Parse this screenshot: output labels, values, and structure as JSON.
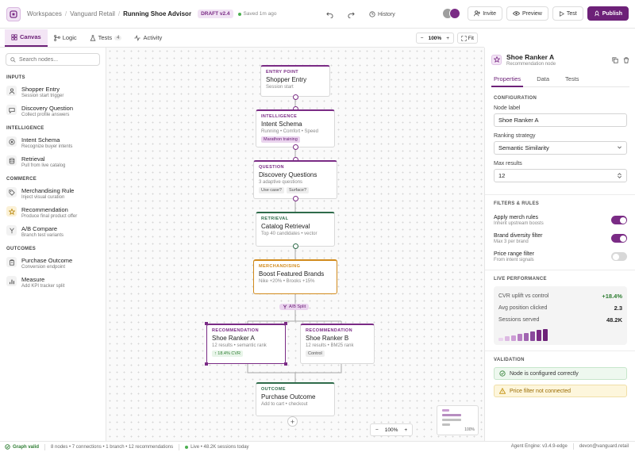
{
  "colors": {
    "accent": "#6d2178",
    "intelligence": "#7a2b85",
    "commerce": "#2e6b4a",
    "merch": "#d18a1c",
    "success": "#2e7d32"
  },
  "topbar": {
    "breadcrumb": [
      "Workspaces",
      "Vanguard Retail",
      "Running Shoe Advisor"
    ],
    "draft_badge": "DRAFT v2.4",
    "saved": "Saved 1m ago",
    "history": "History",
    "invite": "Invite",
    "preview": "Preview",
    "test": "Test",
    "publish": "Publish"
  },
  "tabs": [
    {
      "label": "Canvas",
      "icon": "grid-icon",
      "active": true
    },
    {
      "label": "Logic",
      "icon": "branch-icon"
    },
    {
      "label": "Tests",
      "icon": "flask-icon",
      "count": "4"
    },
    {
      "label": "Activity",
      "icon": "activity-icon"
    }
  ],
  "zoom_top": "100%",
  "fit": "Fit",
  "palette": {
    "search_placeholder": "Search nodes...",
    "sections": [
      {
        "title": "INPUTS",
        "items": [
          {
            "name": "Shopper Entry",
            "sub": "Session start trigger",
            "icon": "user-icon"
          },
          {
            "name": "Discovery Question",
            "sub": "Collect profile answers",
            "icon": "chat-icon"
          }
        ]
      },
      {
        "title": "INTELLIGENCE",
        "items": [
          {
            "name": "Intent Schema",
            "sub": "Recognize buyer intents",
            "icon": "target-icon"
          },
          {
            "name": "Retrieval",
            "sub": "Pull from live catalog",
            "icon": "database-icon"
          }
        ]
      },
      {
        "title": "COMMERCE",
        "items": [
          {
            "name": "Merchandising Rule",
            "sub": "Inject visual curation",
            "icon": "tag-icon"
          },
          {
            "name": "Recommendation",
            "sub": "Produce final product offer",
            "icon": "star-icon"
          },
          {
            "name": "A/B Compare",
            "sub": "Branch test variants",
            "icon": "split-icon"
          }
        ]
      },
      {
        "title": "OUTCOMES",
        "items": [
          {
            "name": "Purchase Outcome",
            "sub": "Conversion endpoint",
            "icon": "cart-icon"
          },
          {
            "name": "Measure",
            "sub": "Add KPI tracker split",
            "icon": "chart-icon"
          }
        ]
      }
    ]
  },
  "nodes": {
    "entry": {
      "type": "ENTRY POINT",
      "title": "Shopper Entry",
      "sub": "Session start"
    },
    "intent": {
      "type": "INTELLIGENCE",
      "title": "Intent Schema",
      "sub": "Running • Comfort • Speed",
      "chips": [
        "Marathon training"
      ]
    },
    "question": {
      "type": "QUESTION",
      "title": "Discovery Questions",
      "sub": "3 adaptive questions",
      "chips": [
        "Use case?",
        "Surface?"
      ]
    },
    "retrieval": {
      "type": "RETRIEVAL",
      "title": "Catalog Retrieval",
      "sub": "Top 40 candidates • vector"
    },
    "merch": {
      "type": "MERCHANDISING",
      "title": "Boost Featured Brands",
      "sub": "Nike +20% • Brooks +15%"
    },
    "split": "A/B Split",
    "recA": {
      "type": "RECOMMENDATION",
      "title": "Shoe Ranker A",
      "sub": "12 results • semantic rank",
      "metric": "↑ 18.4% CVR"
    },
    "recB": {
      "type": "RECOMMENDATION",
      "title": "Shoe Ranker B",
      "sub": "12 results • BM25 rank",
      "chips": [
        "Control"
      ]
    },
    "outcome": {
      "type": "OUTCOME",
      "title": "Purchase Outcome",
      "sub": "Add to cart • checkout"
    }
  },
  "canvas_zoom": "100%",
  "minimap_zoom": "100%",
  "inspector": {
    "title": "Shoe Ranker A",
    "subtitle": "Recommendation node",
    "tabs": [
      "Properties",
      "Data",
      "Tests"
    ],
    "config_label": "CONFIGURATION",
    "node_label_label": "Node label",
    "node_label_value": "Shoe Ranker A",
    "strategy_label": "Ranking strategy",
    "strategy_value": "Semantic Similarity",
    "max_label": "Max results",
    "max_value": "12",
    "filters_label": "FILTERS & RULES",
    "toggles": [
      {
        "name": "Apply merch rules",
        "sub": "Inherit upstream boosts",
        "on": true
      },
      {
        "name": "Brand diversity filter",
        "sub": "Max 3 per brand",
        "on": true
      },
      {
        "name": "Price range filter",
        "sub": "From intent signals",
        "on": false
      }
    ],
    "perf_label": "LIVE PERFORMANCE",
    "perf": [
      {
        "label": "CVR uplift vs control",
        "value": "+18.4%"
      },
      {
        "label": "Avg position clicked",
        "value": "2.3"
      },
      {
        "label": "Sessions served",
        "value": "48.2K"
      }
    ],
    "spark": [
      0.25,
      0.35,
      0.45,
      0.55,
      0.65,
      0.75,
      0.85,
      0.95
    ],
    "validation_label": "VALIDATION",
    "valid_ok": "Node is configured correctly",
    "valid_warn": "Price filter not connected"
  },
  "status": {
    "graph": "Graph valid",
    "stats": "8 nodes • 7 connections • 1 branch • 12 recommendations",
    "live": "Live • 48.2K sessions today",
    "engine": "Agent Engine: v3.4.9-edge",
    "user": "devon@vanguard.retail"
  }
}
